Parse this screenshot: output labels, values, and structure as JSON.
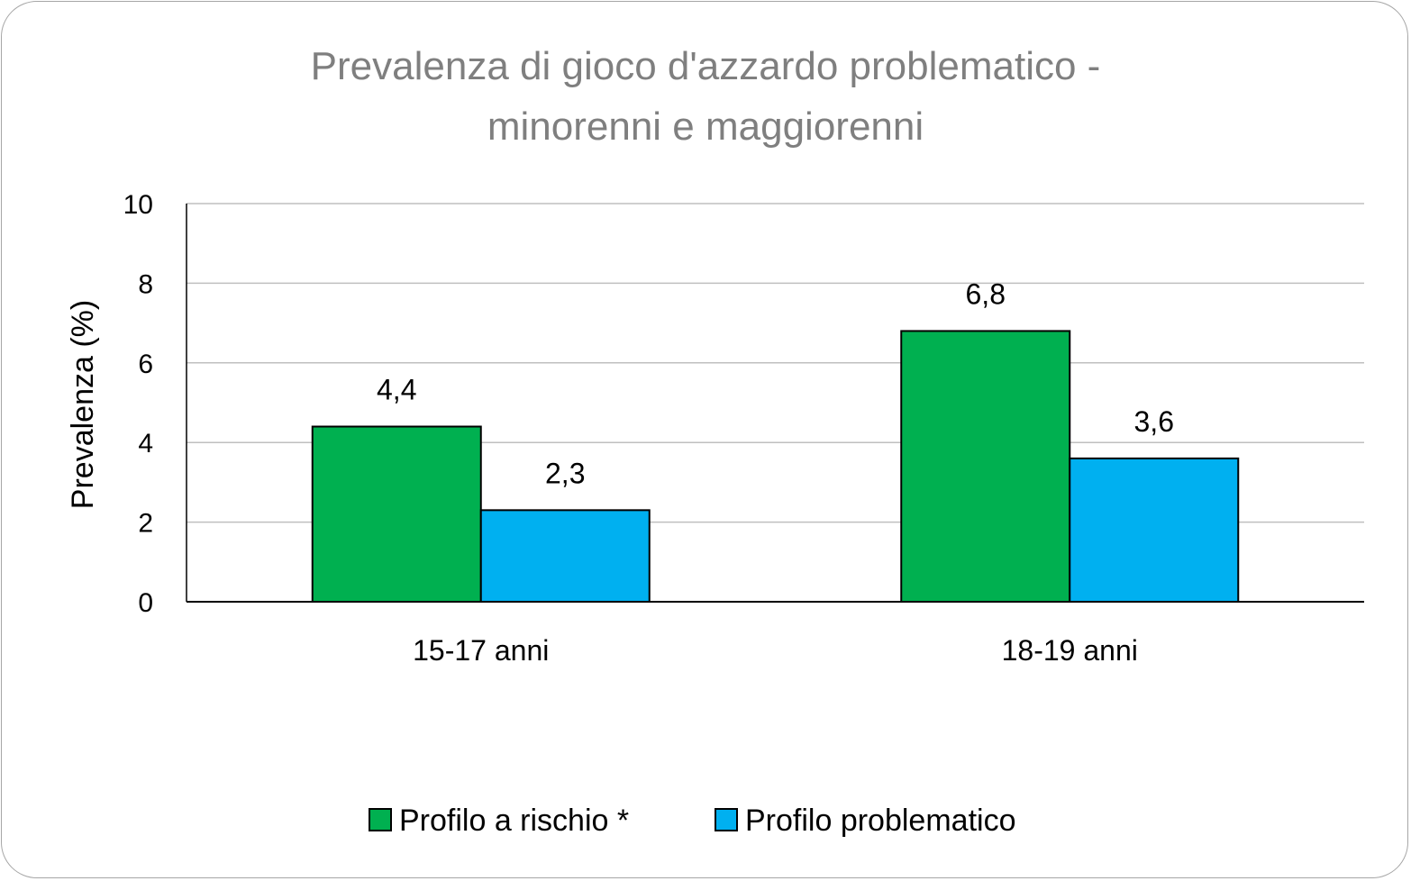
{
  "chart_data": {
    "type": "bar",
    "title_lines": [
      "Prevalenza di gioco d'azzardo problematico -",
      "minorenni e maggiorenni"
    ],
    "xlabel": "",
    "ylabel": "Prevalenza (%)",
    "ylim": [
      0,
      10
    ],
    "yticks": [
      0,
      2,
      4,
      6,
      8,
      10
    ],
    "grid": true,
    "legend_position": "bottom",
    "categories": [
      "15-17 anni",
      "18-19 anni"
    ],
    "series": [
      {
        "name": "Profilo a rischio *",
        "color": "#00b050",
        "values": [
          4.4,
          6.8
        ],
        "labels": [
          "4,4",
          "6,8"
        ]
      },
      {
        "name": "Profilo problematico",
        "color": "#00b0f0",
        "values": [
          2.3,
          3.6
        ],
        "labels": [
          "2,3",
          "3,6"
        ]
      }
    ]
  }
}
